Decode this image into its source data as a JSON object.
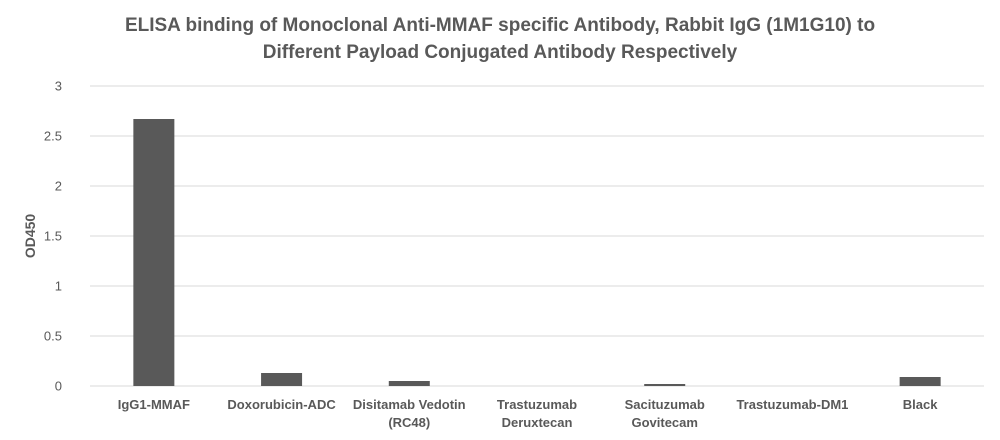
{
  "chart_data": {
    "type": "bar",
    "title_lines": [
      "ELISA binding of Monoclonal Anti-MMAF specific Antibody, Rabbit IgG (1M1G10) to",
      "Different Payload Conjugated Antibody Respectively"
    ],
    "ylabel": "OD450",
    "xlabel": "",
    "ylim": [
      0,
      3
    ],
    "yticks": [
      "0",
      "0.5",
      "1",
      "1.5",
      "2",
      "2.5",
      "3"
    ],
    "grid": true,
    "categories": [
      [
        "IgG1-MMAF"
      ],
      [
        "Doxorubicin-ADC"
      ],
      [
        "Disitamab Vedotin",
        "(RC48)"
      ],
      [
        "Trastuzumab",
        "Deruxtecan"
      ],
      [
        "Sacituzumab",
        "Govitecam"
      ],
      [
        "Trastuzumab-DM1"
      ],
      [
        "Black"
      ]
    ],
    "values": [
      2.67,
      0.13,
      0.05,
      0.0,
      0.02,
      0.0,
      0.09
    ],
    "bar_color": "#595959",
    "grid_color": "#d9d9d9"
  }
}
